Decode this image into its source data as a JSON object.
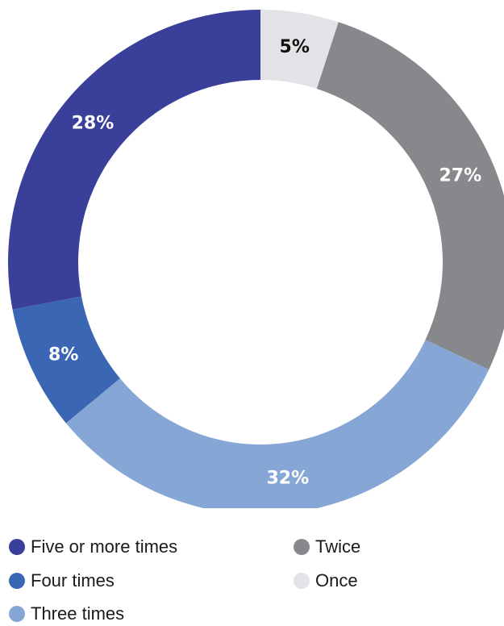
{
  "chart_data": {
    "type": "pie",
    "donut": true,
    "slices": [
      {
        "label": "Once",
        "value": 5,
        "value_label": "5%",
        "color": "#e2e3e6",
        "label_color": "#111111"
      },
      {
        "label": "Twice",
        "value": 27,
        "value_label": "27%",
        "color": "#87888c",
        "label_color": "#ffffff"
      },
      {
        "label": "Three times",
        "value": 32,
        "value_label": "32%",
        "color": "#86a7d5",
        "label_color": "#ffffff"
      },
      {
        "label": "Four times",
        "value": 8,
        "value_label": "8%",
        "color": "#3a66b4",
        "label_color": "#ffffff"
      },
      {
        "label": "Five or more times",
        "value": 28,
        "value_label": "28%",
        "color": "#3a3f9a",
        "label_color": "#ffffff"
      }
    ],
    "legend": {
      "placement": "bottom",
      "items": [
        {
          "label": "Five or more times",
          "color": "#3a3f9a"
        },
        {
          "label": "Twice",
          "color": "#87888c"
        },
        {
          "label": "Four times",
          "color": "#3a66b4"
        },
        {
          "label": "Once",
          "color": "#e2e3e6"
        },
        {
          "label": "Three times",
          "color": "#86a7d5"
        }
      ]
    }
  }
}
